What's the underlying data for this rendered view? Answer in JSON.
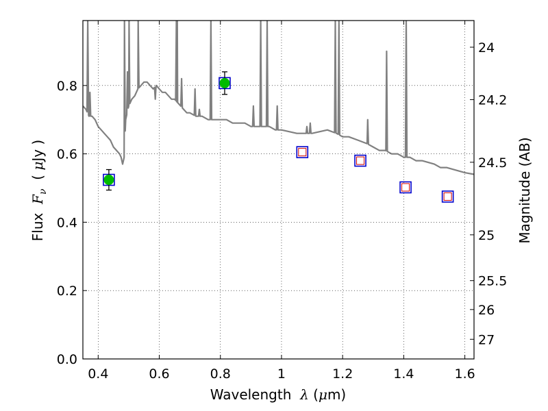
{
  "chart_data": {
    "type": "scatter",
    "xlabel": {
      "prefix": "Wavelength  ",
      "lambda": "λ",
      "unit_open": " (",
      "mu": "μ",
      "unit_rest": "m)"
    },
    "ylabel": {
      "prefix": "Flux  ",
      "F": "F",
      "nu": "ν",
      "unit_open": "  ( ",
      "mu": "μ",
      "unit_rest": "Jy )"
    },
    "y2label": "Magnitude (AB)",
    "xlim": [
      0.35,
      1.63
    ],
    "ylim": [
      0.0,
      0.99
    ],
    "grid": true,
    "xticks": [
      0.4,
      0.6,
      0.8,
      1.0,
      1.2,
      1.4,
      1.6
    ],
    "xtick_labels": [
      "0.4",
      "0.6",
      "0.8",
      "1",
      "1.2",
      "1.4",
      "1.6"
    ],
    "yticks": [
      0.0,
      0.2,
      0.4,
      0.6,
      0.8
    ],
    "ytick_labels": [
      "0.0",
      "0.2",
      "0.4",
      "0.6",
      "0.8"
    ],
    "y2ticks": [
      {
        "label": "24",
        "mag": 24.0
      },
      {
        "label": "24.2",
        "mag": 24.2
      },
      {
        "label": "24.5",
        "mag": 24.5
      },
      {
        "label": "25",
        "mag": 25.0
      },
      {
        "label": "25.5",
        "mag": 25.5
      },
      {
        "label": "26",
        "mag": 26.0
      },
      {
        "label": "27",
        "mag": 27.0
      }
    ],
    "model_spectrum": {
      "color": "#808080",
      "baseline": [
        [
          0.35,
          0.74
        ],
        [
          0.36,
          0.73
        ],
        [
          0.37,
          0.71
        ],
        [
          0.38,
          0.71
        ],
        [
          0.39,
          0.7
        ],
        [
          0.4,
          0.68
        ],
        [
          0.41,
          0.67
        ],
        [
          0.42,
          0.66
        ],
        [
          0.43,
          0.65
        ],
        [
          0.44,
          0.64
        ],
        [
          0.45,
          0.62
        ],
        [
          0.46,
          0.61
        ],
        [
          0.47,
          0.6
        ],
        [
          0.475,
          0.59
        ],
        [
          0.48,
          0.57
        ],
        [
          0.485,
          0.59
        ],
        [
          0.49,
          0.7
        ],
        [
          0.5,
          0.74
        ],
        [
          0.51,
          0.76
        ],
        [
          0.52,
          0.77
        ],
        [
          0.53,
          0.79
        ],
        [
          0.54,
          0.8
        ],
        [
          0.55,
          0.81
        ],
        [
          0.56,
          0.81
        ],
        [
          0.57,
          0.8
        ],
        [
          0.58,
          0.79
        ],
        [
          0.59,
          0.8
        ],
        [
          0.6,
          0.79
        ],
        [
          0.61,
          0.78
        ],
        [
          0.62,
          0.78
        ],
        [
          0.63,
          0.77
        ],
        [
          0.64,
          0.76
        ],
        [
          0.65,
          0.76
        ],
        [
          0.66,
          0.75
        ],
        [
          0.67,
          0.74
        ],
        [
          0.68,
          0.73
        ],
        [
          0.69,
          0.72
        ],
        [
          0.7,
          0.72
        ],
        [
          0.72,
          0.71
        ],
        [
          0.74,
          0.71
        ],
        [
          0.76,
          0.7
        ],
        [
          0.78,
          0.7
        ],
        [
          0.8,
          0.7
        ],
        [
          0.82,
          0.7
        ],
        [
          0.84,
          0.69
        ],
        [
          0.86,
          0.69
        ],
        [
          0.88,
          0.69
        ],
        [
          0.9,
          0.68
        ],
        [
          0.92,
          0.68
        ],
        [
          0.94,
          0.68
        ],
        [
          0.96,
          0.68
        ],
        [
          0.98,
          0.67
        ],
        [
          1.0,
          0.67
        ],
        [
          1.05,
          0.66
        ],
        [
          1.1,
          0.66
        ],
        [
          1.15,
          0.67
        ],
        [
          1.18,
          0.66
        ],
        [
          1.2,
          0.65
        ],
        [
          1.22,
          0.65
        ],
        [
          1.25,
          0.64
        ],
        [
          1.28,
          0.63
        ],
        [
          1.3,
          0.62
        ],
        [
          1.32,
          0.61
        ],
        [
          1.34,
          0.61
        ],
        [
          1.36,
          0.6
        ],
        [
          1.38,
          0.6
        ],
        [
          1.4,
          0.59
        ],
        [
          1.42,
          0.59
        ],
        [
          1.44,
          0.58
        ],
        [
          1.46,
          0.58
        ],
        [
          1.48,
          0.575
        ],
        [
          1.5,
          0.57
        ],
        [
          1.52,
          0.56
        ],
        [
          1.54,
          0.56
        ],
        [
          1.56,
          0.555
        ],
        [
          1.58,
          0.55
        ],
        [
          1.6,
          0.545
        ],
        [
          1.63,
          0.54
        ]
      ],
      "emission_lines": [
        [
          0.366,
          0.99
        ],
        [
          0.373,
          0.78
        ],
        [
          0.486,
          0.99
        ],
        [
          0.496,
          0.84
        ],
        [
          0.501,
          0.99
        ],
        [
          0.531,
          0.99
        ],
        [
          0.587,
          0.76
        ],
        [
          0.656,
          0.99
        ],
        [
          0.659,
          0.99
        ],
        [
          0.673,
          0.82
        ],
        [
          0.717,
          0.79
        ],
        [
          0.731,
          0.73
        ],
        [
          0.769,
          0.99
        ],
        [
          0.908,
          0.74
        ],
        [
          0.932,
          0.99
        ],
        [
          0.953,
          0.99
        ],
        [
          0.986,
          0.74
        ],
        [
          1.083,
          0.68
        ],
        [
          1.094,
          0.69
        ],
        [
          1.176,
          0.99
        ],
        [
          1.188,
          0.99
        ],
        [
          1.282,
          0.7
        ],
        [
          1.344,
          0.9
        ],
        [
          1.408,
          0.99
        ]
      ]
    },
    "detections": {
      "marker": "circle",
      "color": "#00bb00",
      "points": [
        {
          "x": 0.435,
          "y": 0.524,
          "yerr": 0.03
        },
        {
          "x": 0.814,
          "y": 0.807,
          "yerr": 0.033
        }
      ]
    },
    "model_photometry_squares": {
      "color": "#0000cc",
      "points": [
        {
          "x": 0.435,
          "y": 0.524
        },
        {
          "x": 0.814,
          "y": 0.807
        },
        {
          "x": 1.068,
          "y": 0.605
        },
        {
          "x": 1.258,
          "y": 0.58
        },
        {
          "x": 1.406,
          "y": 0.502
        },
        {
          "x": 1.544,
          "y": 0.475
        }
      ]
    },
    "upper_limits": {
      "marker": "open-square",
      "color": "#cc0000",
      "points": [
        {
          "x": 1.068,
          "y": 0.605
        },
        {
          "x": 1.258,
          "y": 0.58
        },
        {
          "x": 1.406,
          "y": 0.502
        },
        {
          "x": 1.544,
          "y": 0.475
        }
      ]
    }
  }
}
